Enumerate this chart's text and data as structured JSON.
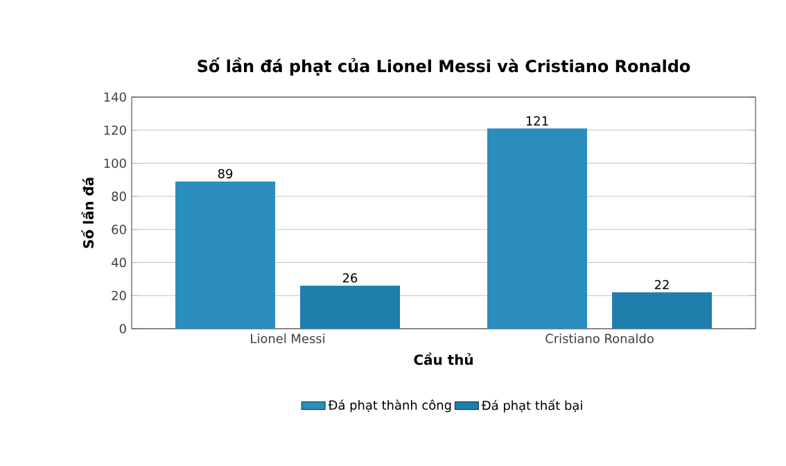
{
  "chart_data": {
    "type": "bar",
    "title": "Số lần đá phạt của Lionel Messi và Cristiano Ronaldo",
    "xlabel": "Cầu thủ",
    "ylabel": "Số lần đá",
    "categories": [
      "Lionel Messi",
      "Cristiano Ronaldo"
    ],
    "series": [
      {
        "name": "Đá phạt thành công",
        "color": "#2a8dbd",
        "values": [
          89,
          121
        ]
      },
      {
        "name": "Đá phạt thất bại",
        "color": "#1f7eab",
        "values": [
          26,
          22
        ]
      }
    ],
    "ylim": [
      0,
      140
    ],
    "yticks": [
      0,
      20,
      40,
      60,
      80,
      100,
      120,
      140
    ],
    "grid": "y",
    "legend": "bottom",
    "data_labels": true
  }
}
